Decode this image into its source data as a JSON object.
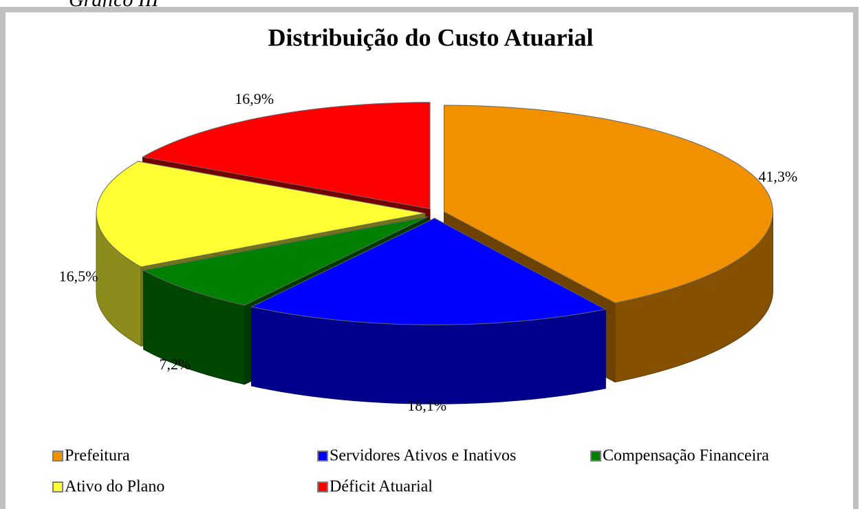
{
  "caption": "Gráfico III",
  "chart_data": {
    "type": "pie3d",
    "title": "Distribuição do Custo Atuarial",
    "categories": [
      "Prefeitura",
      "Servidores Ativos e Inativos",
      "Compensação Financeira",
      "Ativo do Plano",
      "Déficit Atuarial"
    ],
    "values": [
      41.3,
      18.1,
      7.2,
      16.5,
      16.9
    ],
    "value_labels": [
      "41,3%",
      "18,1%",
      "7,2%",
      "16,5%",
      "16,9%"
    ],
    "colors": [
      "#f29100",
      "#0000ff",
      "#008000",
      "#ffff33",
      "#ff0000"
    ],
    "legend": "bottom"
  }
}
